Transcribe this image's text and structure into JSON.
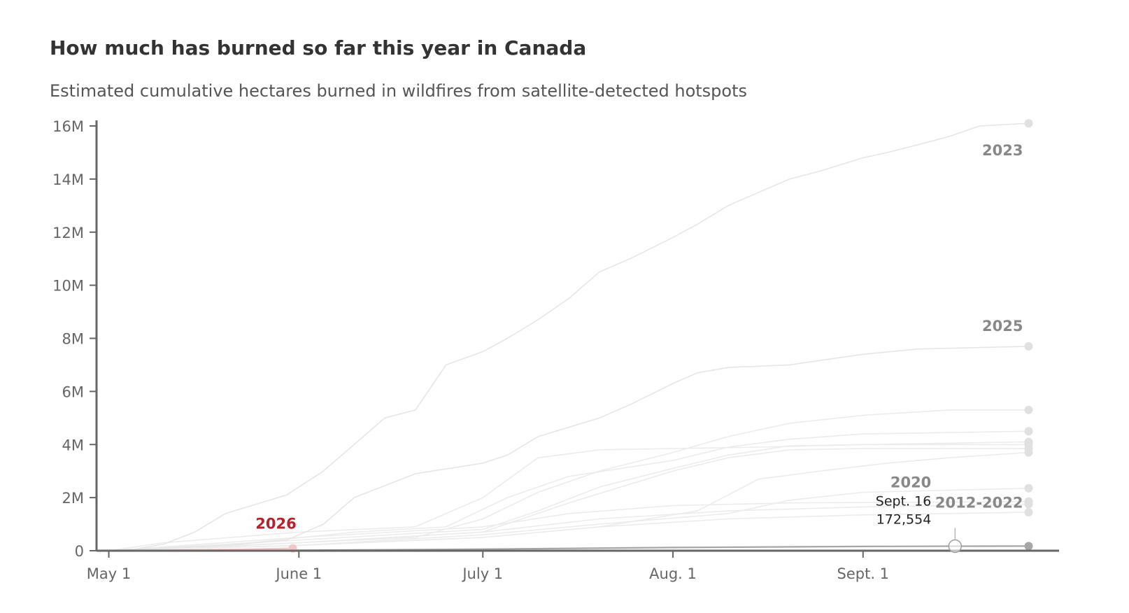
{
  "chart_data": {
    "type": "line",
    "title": "How much has burned so far this year in Canada",
    "subtitle": "Estimated cumulative hectares burned in wildfires from satellite-detected hotspots",
    "xlabel": "",
    "ylabel": "",
    "x_ticks": [
      {
        "date": "2026-05-01",
        "label": "May 1"
      },
      {
        "date": "2026-06-01",
        "label": "June 1"
      },
      {
        "date": "2026-07-01",
        "label": "July 1"
      },
      {
        "date": "2026-08-01",
        "label": "Aug. 1"
      },
      {
        "date": "2026-09-01",
        "label": "Sept. 1"
      }
    ],
    "xlim": [
      "2026-04-29",
      "2026-09-30"
    ],
    "y_ticks": [
      {
        "value": 0,
        "label": "0"
      },
      {
        "value": 2000000,
        "label": "2M"
      },
      {
        "value": 4000000,
        "label": "4M"
      },
      {
        "value": 6000000,
        "label": "6M"
      },
      {
        "value": 8000000,
        "label": "8M"
      },
      {
        "value": 10000000,
        "label": "10M"
      },
      {
        "value": 12000000,
        "label": "12M"
      },
      {
        "value": 14000000,
        "label": "14M"
      },
      {
        "value": 16000000,
        "label": "16M"
      }
    ],
    "ylim": [
      0,
      16000000
    ],
    "grid": false,
    "series": [
      {
        "name": "2023",
        "role": "highlight",
        "color": "#e6e6e6",
        "points": [
          [
            "2026-05-01",
            0
          ],
          [
            "2026-05-05",
            50000
          ],
          [
            "2026-05-10",
            250000
          ],
          [
            "2026-05-15",
            700000
          ],
          [
            "2026-05-20",
            1400000
          ],
          [
            "2026-05-25",
            1750000
          ],
          [
            "2026-05-30",
            2100000
          ],
          [
            "2026-06-05",
            3000000
          ],
          [
            "2026-06-10",
            4000000
          ],
          [
            "2026-06-15",
            5000000
          ],
          [
            "2026-06-20",
            5300000
          ],
          [
            "2026-06-25",
            7000000
          ],
          [
            "2026-07-01",
            7500000
          ],
          [
            "2026-07-05",
            8000000
          ],
          [
            "2026-07-10",
            8700000
          ],
          [
            "2026-07-15",
            9500000
          ],
          [
            "2026-07-20",
            10500000
          ],
          [
            "2026-07-25",
            11000000
          ],
          [
            "2026-08-01",
            11800000
          ],
          [
            "2026-08-05",
            12300000
          ],
          [
            "2026-08-10",
            13000000
          ],
          [
            "2026-08-15",
            13500000
          ],
          [
            "2026-08-20",
            14000000
          ],
          [
            "2026-08-25",
            14300000
          ],
          [
            "2026-09-01",
            14800000
          ],
          [
            "2026-09-05",
            15000000
          ],
          [
            "2026-09-10",
            15300000
          ],
          [
            "2026-09-15",
            15600000
          ],
          [
            "2026-09-20",
            16000000
          ],
          [
            "2026-09-28",
            16100000
          ]
        ]
      },
      {
        "name": "2025",
        "role": "highlight",
        "color": "#e6e6e6",
        "points": [
          [
            "2026-05-01",
            0
          ],
          [
            "2026-05-10",
            100000
          ],
          [
            "2026-05-20",
            200000
          ],
          [
            "2026-05-30",
            400000
          ],
          [
            "2026-06-05",
            1000000
          ],
          [
            "2026-06-10",
            2000000
          ],
          [
            "2026-06-20",
            2900000
          ],
          [
            "2026-07-01",
            3300000
          ],
          [
            "2026-07-05",
            3600000
          ],
          [
            "2026-07-10",
            4300000
          ],
          [
            "2026-07-20",
            5000000
          ],
          [
            "2026-07-25",
            5500000
          ],
          [
            "2026-08-01",
            6300000
          ],
          [
            "2026-08-05",
            6700000
          ],
          [
            "2026-08-10",
            6900000
          ],
          [
            "2026-08-20",
            7000000
          ],
          [
            "2026-09-01",
            7400000
          ],
          [
            "2026-09-10",
            7600000
          ],
          [
            "2026-09-28",
            7700000
          ]
        ]
      },
      {
        "name": "2012-2022",
        "role": "background",
        "color": "#ececec",
        "points": [
          [
            "2026-05-01",
            0
          ],
          [
            "2026-05-15",
            100000
          ],
          [
            "2026-06-01",
            300000
          ],
          [
            "2026-06-20",
            500000
          ],
          [
            "2026-07-01",
            1200000
          ],
          [
            "2026-07-10",
            2200000
          ],
          [
            "2026-07-20",
            3000000
          ],
          [
            "2026-08-01",
            3700000
          ],
          [
            "2026-08-10",
            4300000
          ],
          [
            "2026-08-20",
            4800000
          ],
          [
            "2026-09-01",
            5100000
          ],
          [
            "2026-09-15",
            5300000
          ],
          [
            "2026-09-28",
            5300000
          ]
        ]
      },
      {
        "name": "",
        "role": "background",
        "color": "#ececec",
        "points": [
          [
            "2026-05-01",
            0
          ],
          [
            "2026-05-20",
            200000
          ],
          [
            "2026-06-10",
            700000
          ],
          [
            "2026-06-25",
            900000
          ],
          [
            "2026-07-05",
            2000000
          ],
          [
            "2026-07-15",
            2800000
          ],
          [
            "2026-08-01",
            3400000
          ],
          [
            "2026-08-10",
            3900000
          ],
          [
            "2026-08-20",
            4200000
          ],
          [
            "2026-09-01",
            4400000
          ],
          [
            "2026-09-28",
            4500000
          ]
        ]
      },
      {
        "name": "",
        "role": "background",
        "color": "#ececec",
        "points": [
          [
            "2026-05-01",
            0
          ],
          [
            "2026-05-10",
            300000
          ],
          [
            "2026-06-01",
            700000
          ],
          [
            "2026-06-20",
            900000
          ],
          [
            "2026-07-01",
            2000000
          ],
          [
            "2026-07-10",
            3500000
          ],
          [
            "2026-07-20",
            3800000
          ],
          [
            "2026-08-01",
            3850000
          ],
          [
            "2026-08-15",
            3900000
          ],
          [
            "2026-09-01",
            4000000
          ],
          [
            "2026-09-28",
            4100000
          ]
        ]
      },
      {
        "name": "",
        "role": "background",
        "color": "#ececec",
        "points": [
          [
            "2026-05-01",
            0
          ],
          [
            "2026-06-01",
            400000
          ],
          [
            "2026-07-01",
            800000
          ],
          [
            "2026-07-10",
            1500000
          ],
          [
            "2026-07-20",
            2400000
          ],
          [
            "2026-08-01",
            3100000
          ],
          [
            "2026-08-10",
            3600000
          ],
          [
            "2026-08-20",
            3950000
          ],
          [
            "2026-09-01",
            4000000
          ],
          [
            "2026-09-28",
            4000000
          ]
        ]
      },
      {
        "name": "",
        "role": "background",
        "color": "#ececec",
        "points": [
          [
            "2026-05-01",
            0
          ],
          [
            "2026-06-01",
            300000
          ],
          [
            "2026-07-01",
            700000
          ],
          [
            "2026-07-15",
            1800000
          ],
          [
            "2026-08-01",
            3000000
          ],
          [
            "2026-08-10",
            3500000
          ],
          [
            "2026-08-20",
            3800000
          ],
          [
            "2026-09-01",
            3850000
          ],
          [
            "2026-09-28",
            3850000
          ]
        ]
      },
      {
        "name": "",
        "role": "background",
        "color": "#ececec",
        "points": [
          [
            "2026-05-01",
            0
          ],
          [
            "2026-06-01",
            200000
          ],
          [
            "2026-07-01",
            500000
          ],
          [
            "2026-07-20",
            900000
          ],
          [
            "2026-08-05",
            1500000
          ],
          [
            "2026-08-15",
            2700000
          ],
          [
            "2026-08-25",
            3000000
          ],
          [
            "2026-09-05",
            3300000
          ],
          [
            "2026-09-15",
            3500000
          ],
          [
            "2026-09-28",
            3700000
          ]
        ]
      },
      {
        "name": "",
        "role": "background",
        "color": "#ececec",
        "points": [
          [
            "2026-05-01",
            0
          ],
          [
            "2026-06-01",
            200000
          ],
          [
            "2026-07-01",
            600000
          ],
          [
            "2026-07-20",
            1000000
          ],
          [
            "2026-08-10",
            1400000
          ],
          [
            "2026-08-20",
            1900000
          ],
          [
            "2026-09-01",
            2200000
          ],
          [
            "2026-09-28",
            2350000
          ]
        ]
      },
      {
        "name": "",
        "role": "background",
        "color": "#ececec",
        "points": [
          [
            "2026-05-01",
            0
          ],
          [
            "2026-06-01",
            500000
          ],
          [
            "2026-07-01",
            900000
          ],
          [
            "2026-07-15",
            1400000
          ],
          [
            "2026-08-01",
            1700000
          ],
          [
            "2026-08-20",
            1800000
          ],
          [
            "2026-09-28",
            1850000
          ]
        ]
      },
      {
        "name": "",
        "role": "background",
        "color": "#ececec",
        "points": [
          [
            "2026-05-01",
            0
          ],
          [
            "2026-06-01",
            300000
          ],
          [
            "2026-07-01",
            700000
          ],
          [
            "2026-07-20",
            1200000
          ],
          [
            "2026-08-10",
            1500000
          ],
          [
            "2026-09-01",
            1650000
          ],
          [
            "2026-09-28",
            1750000
          ]
        ]
      },
      {
        "name": "",
        "role": "background",
        "color": "#ececec",
        "points": [
          [
            "2026-05-01",
            0
          ],
          [
            "2026-06-01",
            200000
          ],
          [
            "2026-07-01",
            500000
          ],
          [
            "2026-07-20",
            900000
          ],
          [
            "2026-08-10",
            1200000
          ],
          [
            "2026-09-01",
            1350000
          ],
          [
            "2026-09-28",
            1450000
          ]
        ]
      },
      {
        "name": "2020",
        "role": "emphasis",
        "color": "#a6a6a6",
        "points": [
          [
            "2026-05-01",
            0
          ],
          [
            "2026-06-01",
            15000
          ],
          [
            "2026-07-01",
            60000
          ],
          [
            "2026-08-01",
            120000
          ],
          [
            "2026-09-01",
            160000
          ],
          [
            "2026-09-16",
            172554
          ],
          [
            "2026-09-28",
            175000
          ]
        ]
      },
      {
        "name": "2026",
        "role": "current",
        "color": "#f5c6c6",
        "points": [
          [
            "2026-05-01",
            0
          ],
          [
            "2026-05-10",
            10000
          ],
          [
            "2026-05-20",
            40000
          ],
          [
            "2026-05-31",
            90000
          ]
        ]
      }
    ],
    "series_labels": [
      {
        "series": "2023",
        "text": "2023",
        "color": "#888888"
      },
      {
        "series": "2025",
        "text": "2025",
        "color": "#888888"
      },
      {
        "series": "2012-2022",
        "text": "2012-2022",
        "color": "#888888"
      },
      {
        "series": "2020",
        "text": "2020",
        "color": "#888888"
      },
      {
        "series": "2026",
        "text": "2026",
        "color": "#b8202a"
      }
    ],
    "annotation": {
      "series": "2020",
      "date_label": "Sept. 16",
      "value_label": "172,554",
      "date": "2026-09-16",
      "value": 172554
    },
    "colors": {
      "axis": "#666666",
      "highlight_end_dot": "#e0e0e0",
      "emphasis_dot": "#a6a6a6",
      "current_dot": "#f5c6c6",
      "current_label": "#b8202a"
    }
  }
}
